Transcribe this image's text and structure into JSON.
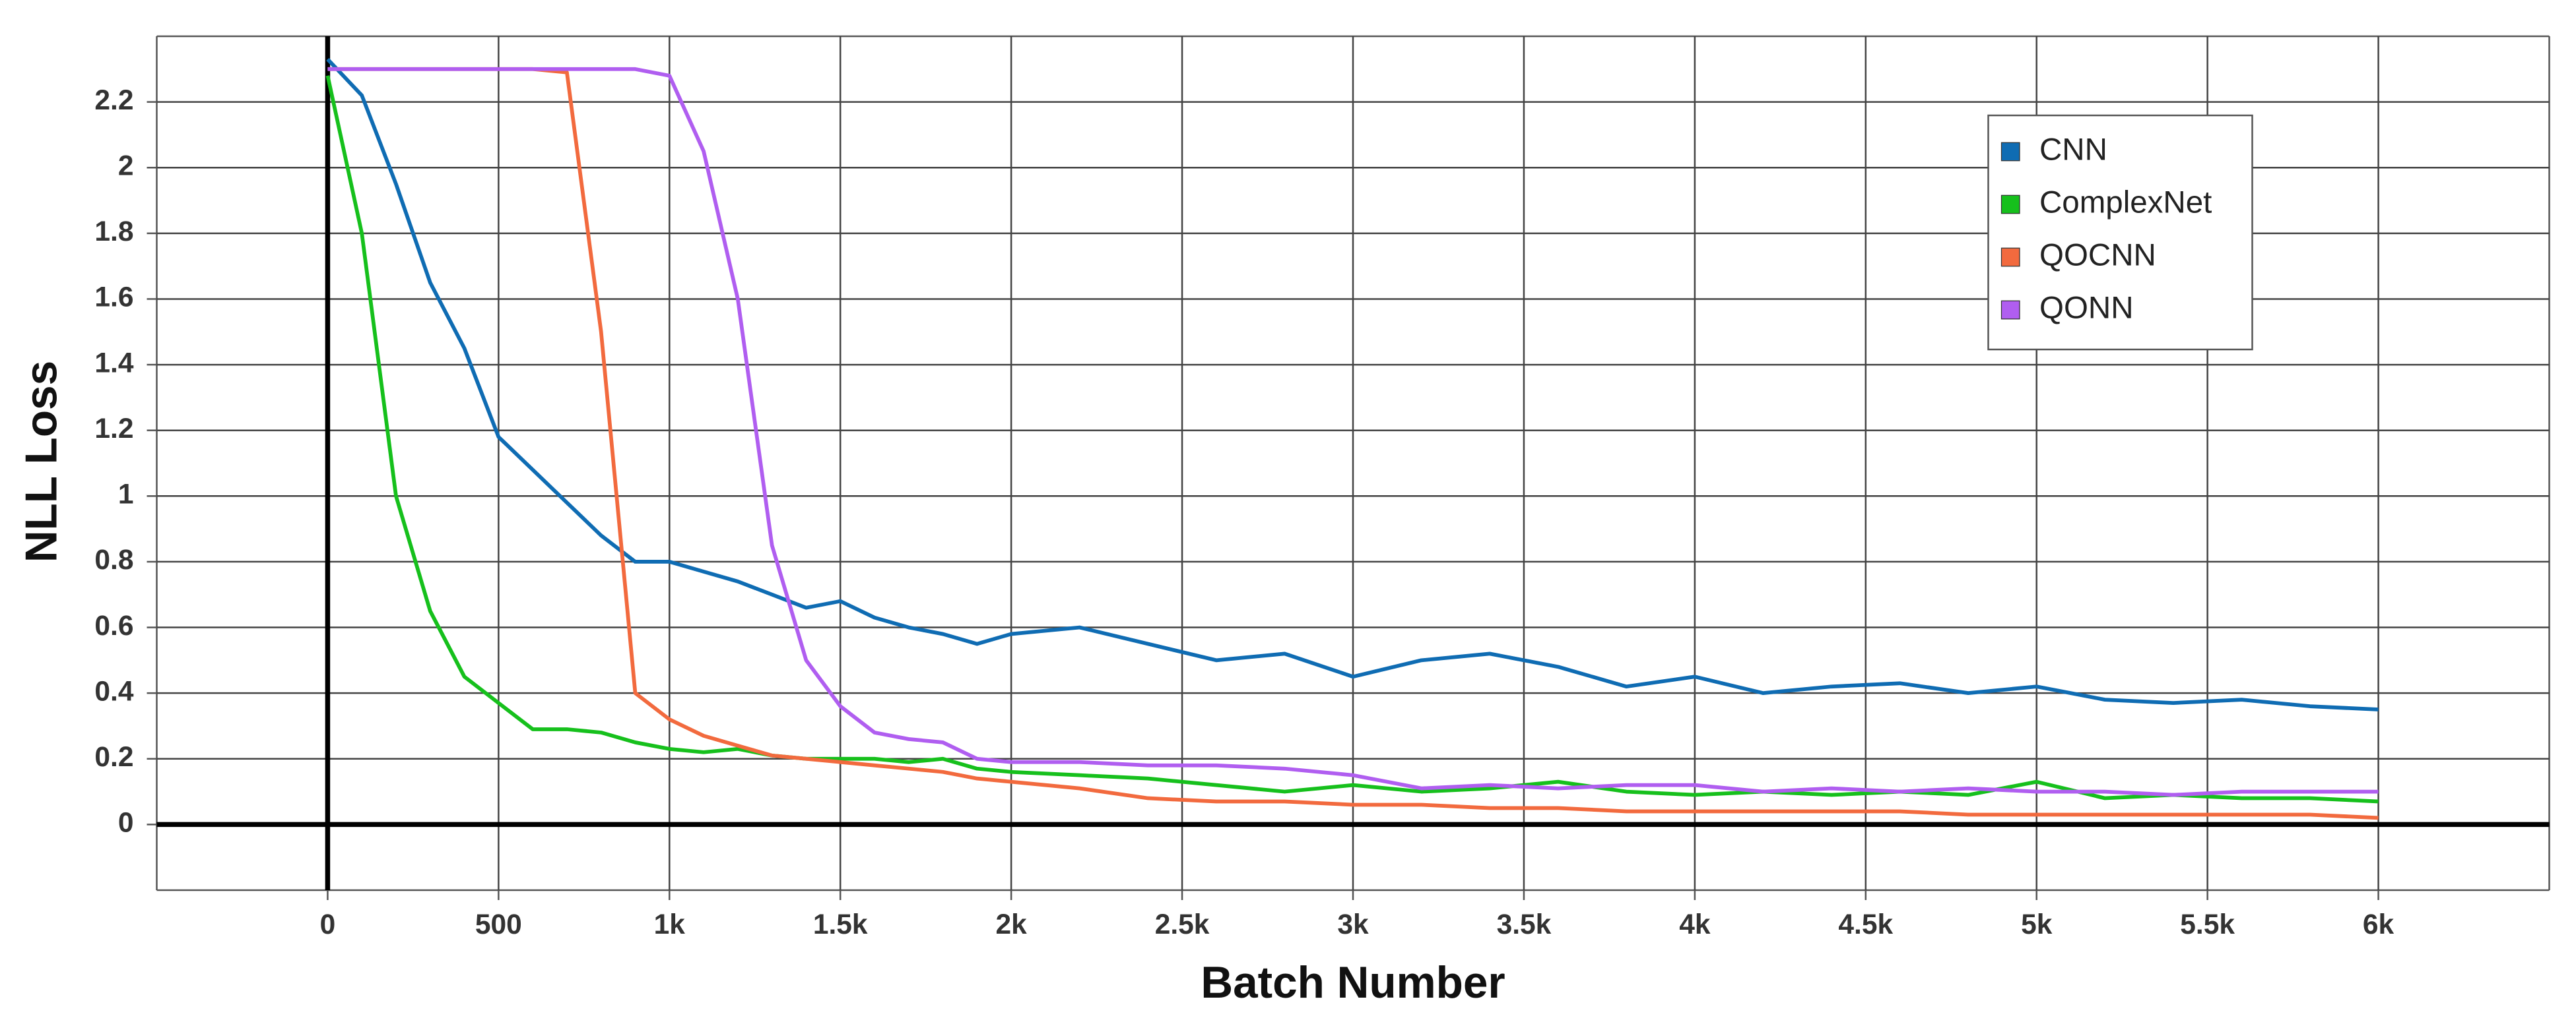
{
  "chart_data": {
    "type": "line",
    "x_label": "Batch Number",
    "y_label": "NLL Loss",
    "x": [
      0,
      100,
      200,
      300,
      400,
      500,
      600,
      700,
      800,
      900,
      1000,
      1100,
      1200,
      1300,
      1400,
      1500,
      1600,
      1700,
      1800,
      1900,
      2000,
      2200,
      2400,
      2600,
      2800,
      3000,
      3200,
      3400,
      3600,
      3800,
      4000,
      4200,
      4400,
      4600,
      4800,
      5000,
      5200,
      5400,
      5600,
      5800,
      6000
    ],
    "series": [
      {
        "name": "CNN",
        "color": "#0f6cb3",
        "values": [
          2.33,
          2.22,
          1.95,
          1.65,
          1.45,
          1.18,
          1.08,
          0.98,
          0.88,
          0.8,
          0.8,
          0.77,
          0.74,
          0.7,
          0.66,
          0.68,
          0.63,
          0.6,
          0.58,
          0.55,
          0.58,
          0.6,
          0.55,
          0.5,
          0.52,
          0.45,
          0.5,
          0.52,
          0.48,
          0.42,
          0.45,
          0.4,
          0.42,
          0.43,
          0.4,
          0.42,
          0.38,
          0.37,
          0.38,
          0.36,
          0.35
        ]
      },
      {
        "name": "ComplexNet",
        "color": "#16c01c",
        "values": [
          2.28,
          1.8,
          1.0,
          0.65,
          0.45,
          0.37,
          0.29,
          0.29,
          0.28,
          0.25,
          0.23,
          0.22,
          0.23,
          0.21,
          0.2,
          0.2,
          0.2,
          0.19,
          0.2,
          0.17,
          0.16,
          0.15,
          0.14,
          0.12,
          0.1,
          0.12,
          0.1,
          0.11,
          0.13,
          0.1,
          0.09,
          0.1,
          0.09,
          0.1,
          0.09,
          0.13,
          0.08,
          0.09,
          0.08,
          0.08,
          0.07
        ]
      },
      {
        "name": "QOCNN",
        "color": "#f26a3e",
        "values": [
          2.3,
          2.3,
          2.3,
          2.3,
          2.3,
          2.3,
          2.3,
          2.29,
          1.5,
          0.4,
          0.32,
          0.27,
          0.24,
          0.21,
          0.2,
          0.19,
          0.18,
          0.17,
          0.16,
          0.14,
          0.13,
          0.11,
          0.08,
          0.07,
          0.07,
          0.06,
          0.06,
          0.05,
          0.05,
          0.04,
          0.04,
          0.04,
          0.04,
          0.04,
          0.03,
          0.03,
          0.03,
          0.03,
          0.03,
          0.03,
          0.02
        ]
      },
      {
        "name": "QONN",
        "color": "#b05ef0",
        "values": [
          2.3,
          2.3,
          2.3,
          2.3,
          2.3,
          2.3,
          2.3,
          2.3,
          2.3,
          2.3,
          2.28,
          2.05,
          1.6,
          0.85,
          0.5,
          0.36,
          0.28,
          0.26,
          0.25,
          0.2,
          0.19,
          0.19,
          0.18,
          0.18,
          0.17,
          0.15,
          0.11,
          0.12,
          0.11,
          0.12,
          0.12,
          0.1,
          0.11,
          0.1,
          0.11,
          0.1,
          0.1,
          0.09,
          0.1,
          0.1,
          0.1
        ]
      }
    ],
    "xlim": [
      -500,
      6500
    ],
    "xticks": [
      0,
      500,
      {
        "value": 1000,
        "label": "1k"
      },
      {
        "value": 1500,
        "label": "1.5k"
      },
      {
        "value": 2000,
        "label": "2k"
      },
      {
        "value": 2500,
        "label": "2.5k"
      },
      {
        "value": 3000,
        "label": "3k"
      },
      {
        "value": 3500,
        "label": "3.5k"
      },
      {
        "value": 4000,
        "label": "4k"
      },
      {
        "value": 4500,
        "label": "4.5k"
      },
      {
        "value": 5000,
        "label": "5k"
      },
      {
        "value": 5500,
        "label": "5.5k"
      },
      {
        "value": 6000,
        "label": "6k"
      }
    ],
    "ylim": [
      -0.2,
      2.4
    ],
    "yticks": [
      0,
      0.2,
      0.4,
      0.6,
      0.8,
      1,
      1.2,
      1.4,
      1.6,
      1.8,
      2,
      2.2
    ],
    "grid": true,
    "legend": "upper right"
  }
}
